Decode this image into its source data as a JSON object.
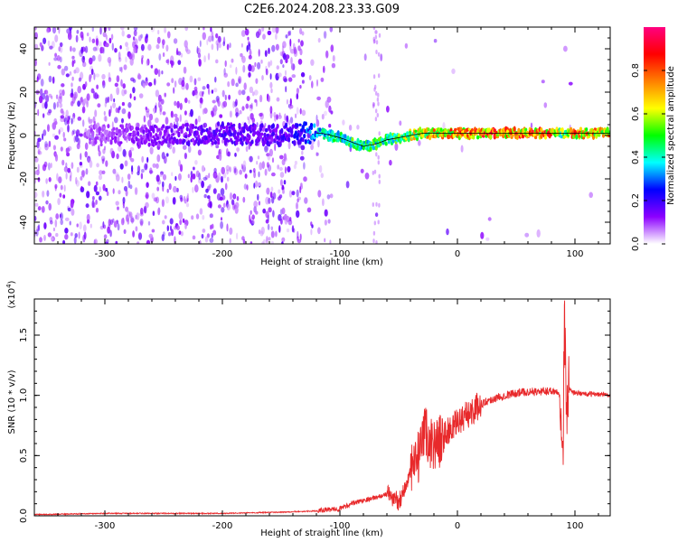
{
  "title": "C2E6.2024.208.23.33.G09",
  "chart_data": [
    {
      "type": "heatmap",
      "xlabel": "Height of straight line (km)",
      "ylabel": "Frequency (Hz)",
      "xlim": [
        -360,
        130
      ],
      "ylim": [
        -50,
        50
      ],
      "x_ticks": [
        -300,
        -200,
        -100,
        0,
        100
      ],
      "x_tick_labels": [
        "-300",
        "-200",
        "-100",
        "0",
        "100"
      ],
      "y_ticks": [
        -40,
        -20,
        0,
        20,
        40
      ],
      "y_tick_labels": [
        "-40",
        "-20",
        "0",
        "20",
        "40"
      ],
      "colorbar": {
        "label": "Normalized spectral amplitude",
        "range": [
          0,
          1
        ],
        "ticks": [
          0.0,
          0.2,
          0.4,
          0.6,
          0.8
        ],
        "tick_labels": [
          "0.0",
          "0.2",
          "0.4",
          "0.6",
          "0.8"
        ],
        "colors": [
          "#ffffff",
          "#8c00ff",
          "#0000ff",
          "#00ffff",
          "#00ff00",
          "#ffff00",
          "#ff8000",
          "#ff0000",
          "#ff0080"
        ]
      },
      "ridge": {
        "x": [
          -310,
          -260,
          -200,
          -150,
          -130,
          -115,
          -100,
          -90,
          -80,
          -70,
          -60,
          -50,
          -40,
          -30,
          -20,
          -10,
          0,
          20,
          40,
          60,
          80,
          90,
          100,
          130
        ],
        "freq": [
          0,
          0,
          1,
          0,
          1,
          1,
          -1,
          -3,
          -5,
          -4,
          -2,
          -1,
          0,
          1,
          1,
          1,
          1,
          1,
          1,
          1,
          1,
          1,
          1,
          1
        ],
        "amplitude": [
          0.1,
          0.15,
          0.2,
          0.2,
          0.3,
          0.45,
          0.5,
          0.55,
          0.5,
          0.55,
          0.55,
          0.6,
          0.7,
          0.75,
          0.8,
          0.8,
          0.85,
          0.9,
          0.9,
          0.9,
          0.9,
          0.6,
          0.85,
          0.8
        ]
      }
    },
    {
      "type": "line",
      "xlabel": "Height of straight line (km)",
      "ylabel": "SNR (10 * v/v)",
      "y_multiplier": "(x10",
      "y_multiplier_exp": "4",
      "y_multiplier_close": ")",
      "xlim": [
        -360,
        130
      ],
      "ylim": [
        0,
        1.8
      ],
      "x_ticks": [
        -300,
        -200,
        -100,
        0,
        100
      ],
      "x_tick_labels": [
        "-300",
        "-200",
        "-100",
        "0",
        "100"
      ],
      "y_ticks": [
        0,
        0.5,
        1.0,
        1.5
      ],
      "y_tick_labels": [
        "0.0",
        "0.5",
        "1.0",
        "1.5"
      ],
      "color": "#e8292b",
      "series": [
        {
          "x": [
            -360,
            -300,
            -200,
            -150,
            -120,
            -100,
            -90,
            -80,
            -70,
            -60,
            -50,
            -45,
            -40,
            -35,
            -30,
            -27,
            -25,
            -20,
            -15,
            -10,
            -5,
            0,
            10,
            20,
            30,
            40,
            50,
            60,
            70,
            80,
            85,
            88,
            90,
            91,
            92,
            93,
            95,
            100,
            110,
            120,
            130
          ],
          "y": [
            0.01,
            0.02,
            0.02,
            0.03,
            0.04,
            0.06,
            0.1,
            0.13,
            0.15,
            0.18,
            0.12,
            0.22,
            0.35,
            0.45,
            0.55,
            0.75,
            0.62,
            0.6,
            0.62,
            0.68,
            0.72,
            0.78,
            0.85,
            0.93,
            0.97,
            1.0,
            1.02,
            1.03,
            1.03,
            1.04,
            1.03,
            1.0,
            0.5,
            1.7,
            1.2,
            0.95,
            1.05,
            1.02,
            1.01,
            1.01,
            1.0
          ]
        }
      ]
    }
  ]
}
